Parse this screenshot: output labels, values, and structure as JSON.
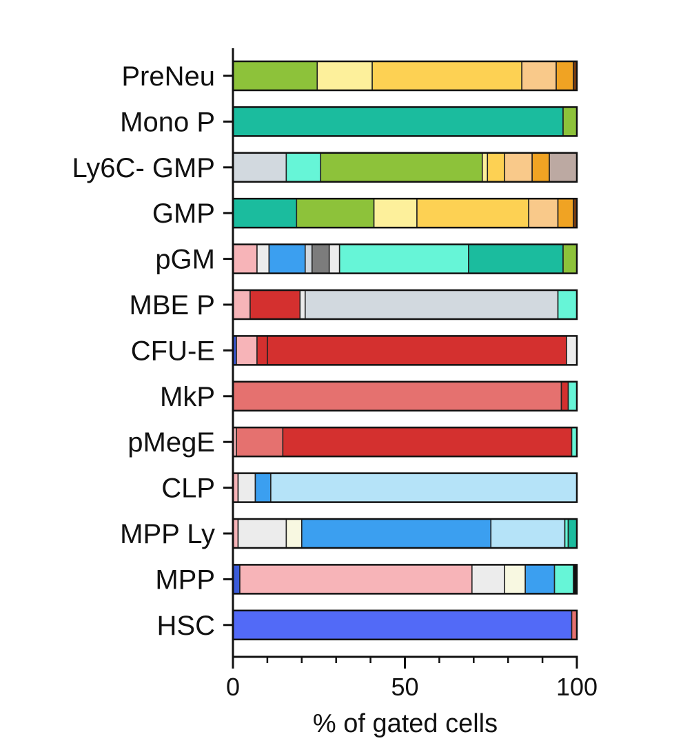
{
  "chart_data": {
    "type": "bar",
    "orientation": "horizontal",
    "stacked": true,
    "xlabel": "% of gated cells",
    "xlim": [
      0,
      100
    ],
    "xticks": [
      0,
      50,
      100
    ],
    "xminor_step": 10,
    "grid": false,
    "legend": "none",
    "categories": [
      "PreNeu",
      "Mono P",
      "Ly6C- GMP",
      "GMP",
      "pGM",
      "MBE P",
      "CFU-E",
      "MkP",
      "pMegE",
      "CLP",
      "MPP Ly",
      "MPP",
      "HSC"
    ],
    "bars": [
      {
        "category": "PreNeu",
        "segments": [
          {
            "value": 24.5,
            "color": "#8dc23a"
          },
          {
            "value": 16.0,
            "color": "#fdf09b"
          },
          {
            "value": 43.5,
            "color": "#fdd153"
          },
          {
            "value": 10.0,
            "color": "#f9c98a"
          },
          {
            "value": 5.0,
            "color": "#f0a323"
          },
          {
            "value": 1.0,
            "color": "#7a3d10"
          }
        ]
      },
      {
        "category": "Mono P",
        "segments": [
          {
            "value": 96.0,
            "color": "#1bbc9e"
          },
          {
            "value": 4.0,
            "color": "#8dc23a"
          }
        ]
      },
      {
        "category": "Ly6C- GMP",
        "segments": [
          {
            "value": 15.5,
            "color": "#d2d9df"
          },
          {
            "value": 10.0,
            "color": "#66f5d7"
          },
          {
            "value": 47.0,
            "color": "#8dc23a"
          },
          {
            "value": 1.5,
            "color": "#fdf09b"
          },
          {
            "value": 5.0,
            "color": "#fdd153"
          },
          {
            "value": 8.0,
            "color": "#f9c98a"
          },
          {
            "value": 5.0,
            "color": "#f0a323"
          },
          {
            "value": 8.0,
            "color": "#bca9a2"
          }
        ]
      },
      {
        "category": "GMP",
        "segments": [
          {
            "value": 18.5,
            "color": "#1bbc9e"
          },
          {
            "value": 22.5,
            "color": "#8dc23a"
          },
          {
            "value": 12.5,
            "color": "#fdf09b"
          },
          {
            "value": 32.5,
            "color": "#fdd153"
          },
          {
            "value": 8.5,
            "color": "#f9c98a"
          },
          {
            "value": 4.5,
            "color": "#f0a323"
          },
          {
            "value": 1.0,
            "color": "#7a3d10"
          }
        ]
      },
      {
        "category": "pGM",
        "segments": [
          {
            "value": 7.0,
            "color": "#f7b4b8"
          },
          {
            "value": 3.5,
            "color": "#ececec"
          },
          {
            "value": 10.5,
            "color": "#3b9ff0"
          },
          {
            "value": 2.0,
            "color": "#d2d9df"
          },
          {
            "value": 5.0,
            "color": "#7c7c7c"
          },
          {
            "value": 3.0,
            "color": "#ececec"
          },
          {
            "value": 37.5,
            "color": "#66f5d7"
          },
          {
            "value": 27.5,
            "color": "#1bbc9e"
          },
          {
            "value": 4.0,
            "color": "#8dc23a"
          }
        ]
      },
      {
        "category": "MBE P",
        "segments": [
          {
            "value": 5.0,
            "color": "#f7b4b8"
          },
          {
            "value": 14.5,
            "color": "#d4302f"
          },
          {
            "value": 1.5,
            "color": "#ececec"
          },
          {
            "value": 73.5,
            "color": "#d2d9df"
          },
          {
            "value": 5.5,
            "color": "#66f5d7"
          }
        ]
      },
      {
        "category": "CFU-E",
        "segments": [
          {
            "value": 1.0,
            "color": "#3a5bd9"
          },
          {
            "value": 6.0,
            "color": "#f7b4b8"
          },
          {
            "value": 3.0,
            "color": "#d4302f"
          },
          {
            "value": 87.0,
            "color": "#d4302f"
          },
          {
            "value": 3.0,
            "color": "#ececec"
          }
        ]
      },
      {
        "category": "MkP",
        "segments": [
          {
            "value": 95.5,
            "color": "#e5716f"
          },
          {
            "value": 2.0,
            "color": "#d4302f"
          },
          {
            "value": 2.5,
            "color": "#66f5d7"
          }
        ]
      },
      {
        "category": "pMegE",
        "segments": [
          {
            "value": 1.0,
            "color": "#f7b4b8"
          },
          {
            "value": 13.5,
            "color": "#e5716f"
          },
          {
            "value": 84.0,
            "color": "#d4302f"
          },
          {
            "value": 1.5,
            "color": "#66f5d7"
          }
        ]
      },
      {
        "category": "CLP",
        "segments": [
          {
            "value": 1.5,
            "color": "#f7b4b8"
          },
          {
            "value": 5.0,
            "color": "#ececec"
          },
          {
            "value": 4.5,
            "color": "#3b9ff0"
          },
          {
            "value": 89.0,
            "color": "#b5e3f8"
          }
        ]
      },
      {
        "category": "MPP Ly",
        "segments": [
          {
            "value": 1.5,
            "color": "#f7b4b8"
          },
          {
            "value": 14.0,
            "color": "#ececec"
          },
          {
            "value": 4.5,
            "color": "#f8f8e1"
          },
          {
            "value": 55.0,
            "color": "#3b9ff0"
          },
          {
            "value": 21.5,
            "color": "#b5e3f8"
          },
          {
            "value": 1.0,
            "color": "#66f5d7"
          },
          {
            "value": 2.5,
            "color": "#1bbc9e"
          }
        ]
      },
      {
        "category": "MPP",
        "segments": [
          {
            "value": 2.0,
            "color": "#3a5bd9"
          },
          {
            "value": 67.5,
            "color": "#f7b4b8"
          },
          {
            "value": 9.5,
            "color": "#ececec"
          },
          {
            "value": 6.0,
            "color": "#f8f8e1"
          },
          {
            "value": 8.5,
            "color": "#3b9ff0"
          },
          {
            "value": 5.5,
            "color": "#66f5d7"
          },
          {
            "value": 1.0,
            "color": "#111111"
          }
        ]
      },
      {
        "category": "HSC",
        "segments": [
          {
            "value": 98.5,
            "color": "#526af7"
          },
          {
            "value": 1.5,
            "color": "#e5716f"
          }
        ]
      }
    ]
  }
}
